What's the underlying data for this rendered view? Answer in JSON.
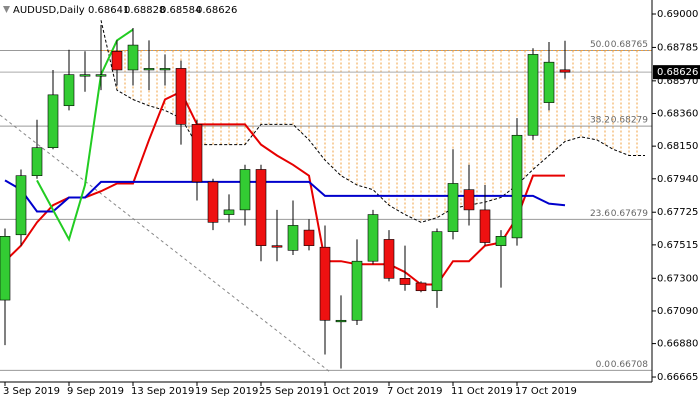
{
  "chart_data": {
    "type": "candlestick",
    "symbol": "AUDUSD,Daily",
    "categories": [
      "3 Sep 2019",
      null,
      null,
      null,
      "9 Sep 2019",
      null,
      null,
      null,
      "13 Sep 2019",
      null,
      null,
      null,
      "19 Sep 2019",
      null,
      null,
      null,
      "25 Sep 2019",
      null,
      null,
      null,
      "1 Oct 2019",
      null,
      null,
      null,
      "7 Oct 2019",
      null,
      null,
      null,
      "11 Oct 2019",
      null,
      null,
      null,
      "17 Oct 2019",
      null,
      null,
      null,
      null,
      null,
      null,
      null,
      null
    ],
    "open": [
      0.6716,
      0.6758,
      0.6796,
      0.6814,
      0.6841,
      0.686,
      0.686,
      0.6876,
      0.6864,
      0.6864,
      0.6864,
      0.6865,
      0.6829,
      0.6792,
      0.6771,
      0.6774,
      0.68,
      0.6751,
      0.6748,
      0.6761,
      0.675,
      0.6702,
      0.6703,
      0.6741,
      0.6755,
      0.673,
      0.6727,
      0.6722,
      0.676,
      0.6787,
      0.6774,
      0.6751,
      0.6756,
      0.6822,
      0.6843,
      0.68641,
      null,
      null,
      null,
      null,
      null
    ],
    "high": [
      0.6762,
      0.68,
      0.6832,
      0.6864,
      0.6877,
      0.6876,
      0.6893,
      0.6883,
      0.6891,
      0.6883,
      0.6874,
      0.687,
      0.6832,
      0.6794,
      0.6784,
      0.6803,
      0.6803,
      0.6774,
      0.678,
      0.6768,
      0.6764,
      0.6719,
      0.6755,
      0.6774,
      0.6761,
      0.6751,
      0.6728,
      0.6762,
      0.6813,
      0.6803,
      0.679,
      0.6761,
      0.6833,
      0.6878,
      0.6882,
      0.68828,
      null,
      null,
      null,
      null,
      null
    ],
    "low": [
      0.6687,
      0.6751,
      0.6794,
      0.6813,
      0.6838,
      0.685,
      0.6851,
      0.6854,
      0.6854,
      0.6851,
      0.6854,
      0.6816,
      0.678,
      0.6761,
      0.6766,
      0.6764,
      0.6741,
      0.6741,
      0.6745,
      0.6748,
      0.6681,
      0.6672,
      0.67,
      0.6739,
      0.6728,
      0.6722,
      0.6721,
      0.6711,
      0.6755,
      0.6764,
      0.6751,
      0.6724,
      0.6751,
      0.6819,
      0.6838,
      0.68584,
      null,
      null,
      null,
      null,
      null
    ],
    "close": [
      0.6757,
      0.6796,
      0.6814,
      0.6848,
      0.6861,
      0.6861,
      0.6861,
      0.6864,
      0.688,
      0.6865,
      0.6865,
      0.6829,
      0.6792,
      0.6766,
      0.6774,
      0.68,
      0.6751,
      0.675,
      0.6764,
      0.6751,
      0.6703,
      0.6703,
      0.6741,
      0.6771,
      0.673,
      0.6726,
      0.6722,
      0.676,
      0.6791,
      0.6774,
      0.6753,
      0.6757,
      0.6822,
      0.6874,
      0.6869,
      0.68626,
      null,
      null,
      null,
      null,
      null
    ],
    "up_color": "#33cc33",
    "down_color": "#ee1111",
    "lines": [
      {
        "color": "#e60000",
        "style": "solid",
        "values": [
          0.6741,
          0.6751,
          0.6766,
          0.6777,
          0.6782,
          0.6782,
          0.6786,
          0.6791,
          0.6791,
          0.6819,
          0.6845,
          0.685,
          0.6829,
          0.6829,
          0.6829,
          0.6829,
          0.6816,
          0.6809,
          0.6803,
          0.6796,
          0.6741,
          0.6741,
          0.6739,
          0.6739,
          0.6739,
          0.6734,
          0.6726,
          0.6726,
          0.6741,
          0.6741,
          0.6751,
          0.6753,
          0.6769,
          0.6796,
          0.6796,
          0.6796,
          null,
          null,
          null,
          null,
          null
        ]
      },
      {
        "color": "#0000cc",
        "style": "solid",
        "values": [
          0.6793,
          0.6787,
          0.6773,
          0.6773,
          0.6782,
          0.6782,
          0.6792,
          0.6792,
          0.6792,
          0.6792,
          0.6792,
          0.6792,
          0.6792,
          0.6792,
          0.6792,
          0.6792,
          0.6792,
          0.6792,
          0.6792,
          0.6792,
          0.6783,
          0.6783,
          0.6783,
          0.6783,
          0.6783,
          0.6783,
          0.6783,
          0.6783,
          0.6783,
          0.6783,
          0.6783,
          0.6783,
          0.6783,
          0.6783,
          0.6778,
          0.6777,
          null,
          null,
          null,
          null,
          null
        ]
      },
      {
        "color": "#22cc22",
        "style": "solid",
        "values": [
          null,
          null,
          0.6793,
          0.6774,
          0.6755,
          0.679,
          0.6861,
          0.6883,
          0.689,
          null,
          null,
          null,
          null,
          null,
          null,
          null,
          null,
          null,
          null,
          null,
          null,
          null,
          null,
          null,
          null,
          null,
          null,
          null,
          null,
          null,
          null,
          null,
          null,
          null,
          null,
          null,
          null,
          null,
          null,
          null,
          null
        ]
      },
      {
        "color": "#000000",
        "style": "dashed",
        "values": [
          null,
          null,
          null,
          null,
          null,
          null,
          0.6896,
          0.6851,
          0.6845,
          0.6841,
          0.6838,
          0.6833,
          0.6816,
          0.6816,
          0.6816,
          0.6816,
          0.6829,
          0.6829,
          0.6829,
          0.6819,
          0.6806,
          0.6796,
          0.679,
          0.6787,
          0.6777,
          0.6771,
          0.6766,
          0.6769,
          0.6775,
          0.6777,
          0.6779,
          0.6782,
          0.679,
          0.68,
          0.6809,
          0.6818,
          0.6821,
          0.6819,
          0.6813,
          0.6809,
          0.6809
        ]
      }
    ],
    "fibonacci": [
      {
        "ratio": "50.0",
        "price": 0.68765
      },
      {
        "ratio": "38.2",
        "price": 0.68279
      },
      {
        "ratio": "23.6",
        "price": 0.67679
      },
      {
        "ratio": "0.0",
        "price": 0.66708
      }
    ],
    "ylim": [
      0.66633,
      0.6909
    ],
    "yticks": [
      {
        "value": 0.69,
        "label": "0.69000"
      },
      {
        "value": 0.68785,
        "label": "0.68785"
      },
      {
        "value": 0.6857,
        "label": "0.68570"
      },
      {
        "value": 0.6836,
        "label": "0.68360"
      },
      {
        "value": 0.6815,
        "label": "0.68150"
      },
      {
        "value": 0.6794,
        "label": "0.67940"
      },
      {
        "value": 0.67725,
        "label": "0.67725"
      },
      {
        "value": 0.67515,
        "label": "0.67515"
      },
      {
        "value": 0.673,
        "label": "0.67300"
      },
      {
        "value": 0.6709,
        "label": "0.67090"
      },
      {
        "value": 0.6688,
        "label": "0.66880"
      },
      {
        "value": 0.66665,
        "label": "0.66665"
      }
    ],
    "grid": false
  }
}
